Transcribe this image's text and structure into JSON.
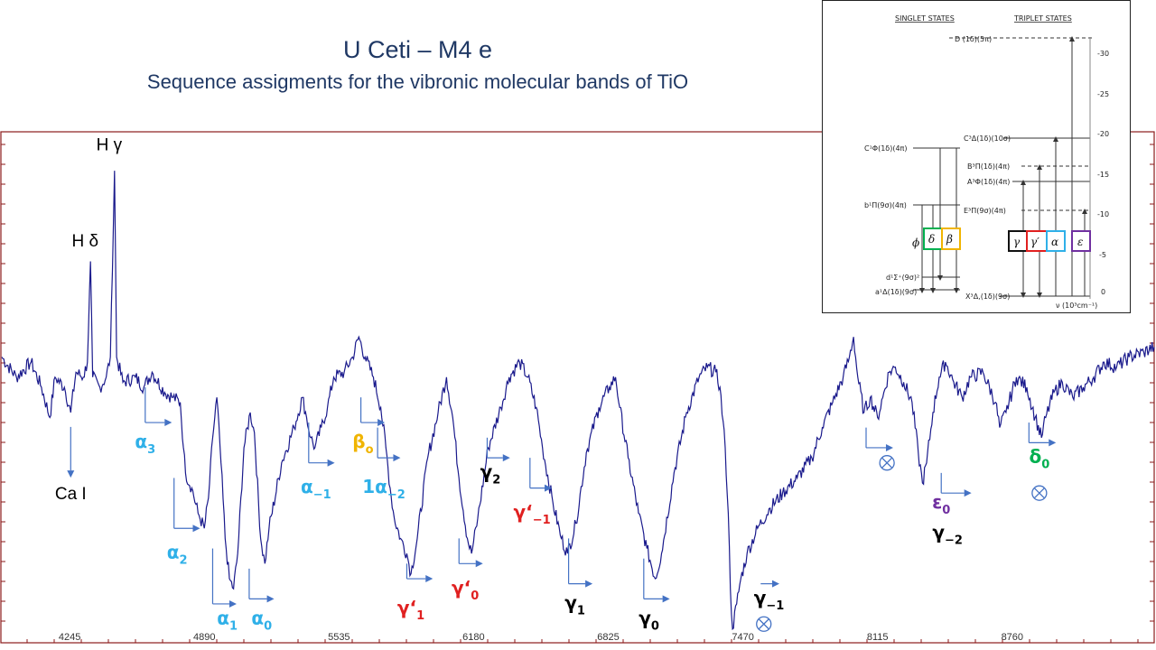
{
  "title": "U Ceti – M4 e",
  "subtitle": "Sequence assigments for the vibronic molecular bands of TiO",
  "colors": {
    "title": "#1f3864",
    "spectrum": "#1a1a8c",
    "marker": "#4472c4",
    "alpha": "#2fb0e8",
    "beta": "#f0b400",
    "gamma_prime": "#e02020",
    "gamma": "#000000",
    "epsilon": "#7030a0",
    "delta": "#00b050"
  },
  "chart_data": {
    "type": "line",
    "x_ticks": [
      4245,
      4890,
      5535,
      6180,
      6825,
      7470,
      8115,
      8760
    ],
    "xlim": [
      3920,
      9440
    ],
    "ylim": [
      0,
      1
    ],
    "grid": false,
    "anchors": [
      [
        3920,
        0.56
      ],
      [
        3990,
        0.52
      ],
      [
        4060,
        0.55
      ],
      [
        4110,
        0.5
      ],
      [
        4150,
        0.44
      ],
      [
        4175,
        0.52
      ],
      [
        4220,
        0.5
      ],
      [
        4250,
        0.45
      ],
      [
        4275,
        0.53
      ],
      [
        4310,
        0.52
      ],
      [
        4330,
        0.55
      ],
      [
        4345,
        0.75
      ],
      [
        4355,
        0.52
      ],
      [
        4390,
        0.5
      ],
      [
        4420,
        0.52
      ],
      [
        4440,
        0.56
      ],
      [
        4460,
        0.93
      ],
      [
        4470,
        0.56
      ],
      [
        4500,
        0.51
      ],
      [
        4560,
        0.52
      ],
      [
        4600,
        0.5
      ],
      [
        4640,
        0.53
      ],
      [
        4700,
        0.49
      ],
      [
        4740,
        0.48
      ],
      [
        4775,
        0.47
      ],
      [
        4790,
        0.38
      ],
      [
        4800,
        0.33
      ],
      [
        4830,
        0.3
      ],
      [
        4860,
        0.25
      ],
      [
        4890,
        0.22
      ],
      [
        4910,
        0.28
      ],
      [
        4930,
        0.4
      ],
      [
        4950,
        0.48
      ],
      [
        4970,
        0.35
      ],
      [
        4990,
        0.2
      ],
      [
        5010,
        0.12
      ],
      [
        5030,
        0.1
      ],
      [
        5050,
        0.17
      ],
      [
        5080,
        0.38
      ],
      [
        5110,
        0.45
      ],
      [
        5130,
        0.41
      ],
      [
        5160,
        0.2
      ],
      [
        5180,
        0.15
      ],
      [
        5200,
        0.22
      ],
      [
        5260,
        0.35
      ],
      [
        5320,
        0.42
      ],
      [
        5360,
        0.48
      ],
      [
        5380,
        0.44
      ],
      [
        5400,
        0.4
      ],
      [
        5420,
        0.38
      ],
      [
        5450,
        0.42
      ],
      [
        5480,
        0.46
      ],
      [
        5510,
        0.52
      ],
      [
        5560,
        0.53
      ],
      [
        5600,
        0.56
      ],
      [
        5630,
        0.6
      ],
      [
        5660,
        0.56
      ],
      [
        5700,
        0.52
      ],
      [
        5735,
        0.46
      ],
      [
        5760,
        0.38
      ],
      [
        5780,
        0.3
      ],
      [
        5800,
        0.24
      ],
      [
        5830,
        0.2
      ],
      [
        5860,
        0.17
      ],
      [
        5880,
        0.13
      ],
      [
        5910,
        0.2
      ],
      [
        5960,
        0.36
      ],
      [
        6010,
        0.45
      ],
      [
        6050,
        0.52
      ],
      [
        6080,
        0.44
      ],
      [
        6110,
        0.32
      ],
      [
        6150,
        0.2
      ],
      [
        6170,
        0.17
      ],
      [
        6200,
        0.24
      ],
      [
        6250,
        0.38
      ],
      [
        6310,
        0.46
      ],
      [
        6350,
        0.52
      ],
      [
        6400,
        0.55
      ],
      [
        6440,
        0.52
      ],
      [
        6480,
        0.46
      ],
      [
        6510,
        0.38
      ],
      [
        6560,
        0.27
      ],
      [
        6600,
        0.2
      ],
      [
        6630,
        0.17
      ],
      [
        6670,
        0.23
      ],
      [
        6720,
        0.37
      ],
      [
        6780,
        0.46
      ],
      [
        6830,
        0.5
      ],
      [
        6860,
        0.52
      ],
      [
        6880,
        0.46
      ],
      [
        6920,
        0.36
      ],
      [
        6970,
        0.25
      ],
      [
        7010,
        0.18
      ],
      [
        7050,
        0.12
      ],
      [
        7080,
        0.17
      ],
      [
        7140,
        0.33
      ],
      [
        7200,
        0.45
      ],
      [
        7260,
        0.52
      ],
      [
        7300,
        0.54
      ],
      [
        7340,
        0.53
      ],
      [
        7360,
        0.5
      ],
      [
        7385,
        0.38
      ],
      [
        7400,
        0.25
      ],
      [
        7410,
        0.1
      ],
      [
        7420,
        0.02
      ],
      [
        7440,
        0.07
      ],
      [
        7460,
        0.12
      ],
      [
        7490,
        0.17
      ],
      [
        7540,
        0.22
      ],
      [
        7600,
        0.26
      ],
      [
        7660,
        0.29
      ],
      [
        7730,
        0.32
      ],
      [
        7800,
        0.36
      ],
      [
        7850,
        0.42
      ],
      [
        7900,
        0.47
      ],
      [
        7950,
        0.52
      ],
      [
        7980,
        0.56
      ],
      [
        8000,
        0.6
      ],
      [
        8020,
        0.52
      ],
      [
        8050,
        0.45
      ],
      [
        8080,
        0.48
      ],
      [
        8115,
        0.44
      ],
      [
        8140,
        0.48
      ],
      [
        8170,
        0.53
      ],
      [
        8200,
        0.54
      ],
      [
        8240,
        0.51
      ],
      [
        8280,
        0.47
      ],
      [
        8310,
        0.37
      ],
      [
        8330,
        0.31
      ],
      [
        8350,
        0.35
      ],
      [
        8380,
        0.45
      ],
      [
        8410,
        0.52
      ],
      [
        8440,
        0.55
      ],
      [
        8480,
        0.51
      ],
      [
        8520,
        0.48
      ],
      [
        8560,
        0.52
      ],
      [
        8620,
        0.53
      ],
      [
        8680,
        0.47
      ],
      [
        8700,
        0.42
      ],
      [
        8730,
        0.45
      ],
      [
        8780,
        0.52
      ],
      [
        8830,
        0.5
      ],
      [
        8870,
        0.44
      ],
      [
        8900,
        0.4
      ],
      [
        8920,
        0.44
      ],
      [
        8960,
        0.49
      ],
      [
        9000,
        0.51
      ],
      [
        9050,
        0.48
      ],
      [
        9100,
        0.5
      ],
      [
        9150,
        0.52
      ],
      [
        9200,
        0.55
      ],
      [
        9260,
        0.54
      ],
      [
        9320,
        0.56
      ],
      [
        9390,
        0.57
      ],
      [
        9440,
        0.58
      ]
    ],
    "line_annotations": [
      {
        "text": "H δ",
        "x": 4345,
        "y": 0.78,
        "color": "#000000"
      },
      {
        "text": "H γ",
        "x": 4460,
        "y": 0.97,
        "color": "#000000"
      }
    ],
    "arrow_down": {
      "x": 4250,
      "y_top": 0.45,
      "y_bottom": 0.36,
      "label": "Ca I"
    },
    "bands": [
      {
        "label": "α",
        "sub": "3",
        "x": 4607,
        "y_top": 0.5,
        "y_h": 0.43,
        "tail": 4700,
        "color": "#2fb0e8",
        "lx": 4607,
        "ly": 0.38
      },
      {
        "label": "α",
        "sub": "2",
        "x": 4745,
        "y_top": 0.32,
        "y_h": 0.22,
        "tail": 4835,
        "color": "#2fb0e8",
        "lx": 4760,
        "ly": 0.16
      },
      {
        "label": "α",
        "sub": "1",
        "x": 4930,
        "y_top": 0.18,
        "y_h": 0.07,
        "tail": 5010,
        "color": "#2fb0e8",
        "lx": 5000,
        "ly": 0.03
      },
      {
        "label": "α",
        "sub": "0",
        "x": 5105,
        "y_top": 0.14,
        "y_h": 0.08,
        "tail": 5190,
        "color": "#2fb0e8",
        "lx": 5165,
        "ly": 0.03
      },
      {
        "label": "α",
        "sub": "−1",
        "x": 5390,
        "y_top": 0.43,
        "y_h": 0.35,
        "tail": 5480,
        "color": "#2fb0e8",
        "lx": 5425,
        "ly": 0.29
      },
      {
        "label": "β",
        "sub": "o",
        "x": 5640,
        "y_top": 0.48,
        "y_h": 0.43,
        "tail": 5720,
        "color": "#f0b400",
        "lx": 5650,
        "ly": 0.38
      },
      {
        "label": "1α",
        "sub": "−2",
        "x": 5720,
        "y_top": 0.42,
        "y_h": 0.36,
        "tail": 5795,
        "color": "#2fb0e8",
        "lx": 5750,
        "ly": 0.29
      },
      {
        "label": "γ‘",
        "sub": "1",
        "x": 5860,
        "y_top": 0.15,
        "y_h": 0.12,
        "tail": 5950,
        "color": "#e02020",
        "lx": 5880,
        "ly": 0.05
      },
      {
        "label": "γ‘",
        "sub": "0",
        "x": 6110,
        "y_top": 0.2,
        "y_h": 0.15,
        "tail": 6190,
        "color": "#e02020",
        "lx": 6140,
        "ly": 0.09
      },
      {
        "label": "γ",
        "sub": "2",
        "x": 6245,
        "y_top": 0.4,
        "y_h": 0.36,
        "tail": 6320,
        "color": "#000000",
        "lx": 6260,
        "ly": 0.32
      },
      {
        "label": "γ‘",
        "sub": "−1",
        "x": 6450,
        "y_top": 0.36,
        "y_h": 0.3,
        "tail": 6520,
        "color": "#e02020",
        "lx": 6460,
        "ly": 0.24
      },
      {
        "label": "γ",
        "sub": "1",
        "x": 6635,
        "y_top": 0.2,
        "y_h": 0.11,
        "tail": 6715,
        "color": "#000000",
        "lx": 6665,
        "ly": 0.06
      },
      {
        "label": "γ",
        "sub": "0",
        "x": 6995,
        "y_top": 0.16,
        "y_h": 0.08,
        "tail": 7085,
        "color": "#000000",
        "lx": 7020,
        "ly": 0.03
      },
      {
        "label": "γ",
        "sub": "−1",
        "x": 7555,
        "y_top": 0.11,
        "y_h": 0.11,
        "tail": 7610,
        "color": "#000000",
        "lx": 7595,
        "ly": 0.07
      },
      {
        "label": "",
        "sub": "",
        "x": 8060,
        "y_top": 0.42,
        "y_h": 0.38,
        "tail": 8155,
        "color": "#4472c4",
        "lx": 0,
        "ly": 0
      },
      {
        "label": "",
        "sub": "",
        "x": 8420,
        "y_top": 0.33,
        "y_h": 0.29,
        "tail": 8530,
        "color": "#4472c4",
        "lx": 0,
        "ly": 0
      },
      {
        "label": "",
        "sub": "",
        "x": 8840,
        "y_top": 0.43,
        "y_h": 0.39,
        "tail": 8935,
        "color": "#4472c4",
        "lx": 0,
        "ly": 0
      }
    ],
    "extra_labels": [
      {
        "label": "ε",
        "sub": "0",
        "x": 8420,
        "y": 0.26,
        "color": "#7030a0"
      },
      {
        "label": "γ",
        "sub": "−2",
        "x": 8450,
        "y": 0.2,
        "color": "#000000"
      },
      {
        "label": "δ",
        "sub": "0",
        "x": 8890,
        "y": 0.35,
        "color": "#00b050"
      }
    ],
    "telluric": [
      {
        "x": 7570,
        "y": 0.03
      },
      {
        "x": 8160,
        "y": 0.35
      },
      {
        "x": 8890,
        "y": 0.29
      }
    ]
  },
  "inset": {
    "header_singlet": "SINGLET STATES",
    "header_triplet": "TRIPLET STATES",
    "axis_label": "ν (10³cm⁻¹)",
    "y_ticks": [
      "0",
      "-5",
      "-10",
      "-15",
      "-20",
      "-25",
      "-30"
    ],
    "levels": {
      "D": "D (1δ)(5π)",
      "C3": "C³Δ(1δ)(10σ)",
      "C1": "C¹Φ(1δ)(4π)",
      "B3": "B³Π(1δ)(4π)",
      "A3": "A³Φ(1δ)(4π)",
      "b1": "b¹Π(9σ)(4π)",
      "E3": "E³Π(9σ)(4π)",
      "d1": "d¹Σ⁺(9σ)²",
      "a1": "a¹Δ(1δ)(9σ)",
      "X3": "X³Δ,(1δ)(9σ)"
    },
    "boxes": {
      "phi": "ϕ",
      "delta": "δ",
      "beta": "β",
      "gamma": "γ",
      "gamma_prime": "γ′",
      "alpha": "α",
      "epsilon": "ε"
    }
  }
}
